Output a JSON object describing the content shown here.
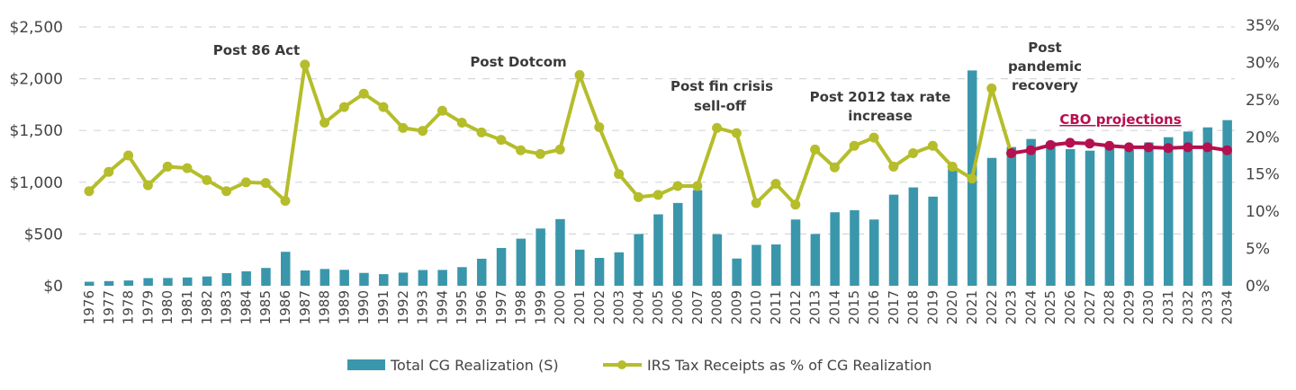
{
  "chart_data": {
    "type": "bar+line",
    "categories": [
      "1976",
      "1977",
      "1978",
      "1979",
      "1980",
      "1981",
      "1982",
      "1983",
      "1984",
      "1985",
      "1986",
      "1987",
      "1988",
      "1989",
      "1990",
      "1991",
      "1992",
      "1993",
      "1994",
      "1995",
      "1996",
      "1997",
      "1998",
      "1999",
      "2000",
      "2001",
      "2002",
      "2003",
      "2004",
      "2005",
      "2006",
      "2007",
      "2008",
      "2009",
      "2010",
      "2011",
      "2012",
      "2013",
      "2014",
      "2015",
      "2016",
      "2017",
      "2018",
      "2019",
      "2020",
      "2021",
      "2022",
      "2023",
      "2024",
      "2025",
      "2026",
      "2027",
      "2028",
      "2029",
      "2030",
      "2031",
      "2032",
      "2033",
      "2034"
    ],
    "left_axis": {
      "ylim": [
        0,
        2500
      ],
      "ticks": [
        "$0",
        "$500",
        "$1,000",
        "$1,500",
        "$2,000",
        "$2,500"
      ],
      "tick_values": [
        0,
        500,
        1000,
        1500,
        2000,
        2500
      ]
    },
    "right_axis": {
      "ylim": [
        0,
        35
      ],
      "ticks": [
        "0%",
        "5%",
        "10%",
        "15%",
        "20%",
        "25%",
        "30%",
        "35%"
      ],
      "tick_values": [
        0,
        5,
        10,
        15,
        20,
        25,
        30,
        35
      ]
    },
    "grid": "horizontal dashed",
    "legend_placement": "bottom",
    "series": [
      {
        "name": "Total CG Realization (S)",
        "type": "bar",
        "axis": "left",
        "color": "#3a97ab",
        "values": [
          39,
          45,
          51,
          74,
          75,
          80,
          90,
          122,
          140,
          172,
          328,
          148,
          162,
          154,
          124,
          112,
          127,
          152,
          153,
          180,
          261,
          365,
          455,
          553,
          644,
          349,
          269,
          323,
          500,
          690,
          800,
          924,
          498,
          263,
          395,
          399,
          640,
          500,
          710,
          730,
          640,
          880,
          950,
          861,
          1130,
          2080,
          1235,
          1340,
          1418,
          1390,
          1320,
          1305,
          1350,
          1315,
          1385,
          1435,
          1490,
          1530,
          1600
        ]
      },
      {
        "name": "IRS Tax Receipts as % of CG Realization",
        "type": "line",
        "axis": "right",
        "color": "#b5bd2a",
        "values": [
          12.7,
          15.3,
          17.5,
          13.5,
          16.0,
          15.8,
          14.2,
          12.7,
          13.9,
          13.8,
          11.4,
          29.7,
          21.9,
          24.0,
          25.8,
          24.0,
          21.2,
          20.8,
          23.5,
          21.9,
          20.6,
          19.6,
          18.2,
          17.7,
          18.3,
          28.3,
          21.3,
          15.0,
          11.9,
          12.2,
          13.4,
          13.4,
          21.2,
          20.5,
          11.1,
          13.7,
          10.9,
          18.3,
          15.9,
          18.8,
          19.9,
          16.0,
          17.8,
          18.8,
          16.0,
          14.4,
          26.5,
          17.8,
          null,
          null,
          null,
          null,
          null,
          null,
          null,
          null,
          null,
          null,
          null
        ]
      },
      {
        "type": "line",
        "axis": "right",
        "color": "#b5104f",
        "values": [
          null,
          null,
          null,
          null,
          null,
          null,
          null,
          null,
          null,
          null,
          null,
          null,
          null,
          null,
          null,
          null,
          null,
          null,
          null,
          null,
          null,
          null,
          null,
          null,
          null,
          null,
          null,
          null,
          null,
          null,
          null,
          null,
          null,
          null,
          null,
          null,
          null,
          null,
          null,
          null,
          null,
          null,
          null,
          null,
          null,
          null,
          null,
          17.8,
          18.2,
          18.9,
          19.2,
          19.1,
          18.8,
          18.6,
          18.6,
          18.5,
          18.6,
          18.6,
          18.2
        ]
      }
    ],
    "annotations": {
      "post86": "Post 86 Act",
      "dotcom": "Post Dotcom",
      "fin1": "Post fin crisis",
      "fin2": "sell-off",
      "tax1": "Post 2012 tax rate",
      "tax2": "increase",
      "pan1": "Post",
      "pan2": "pandemic",
      "pan3": "recovery",
      "cbo": "CBO projections"
    }
  }
}
